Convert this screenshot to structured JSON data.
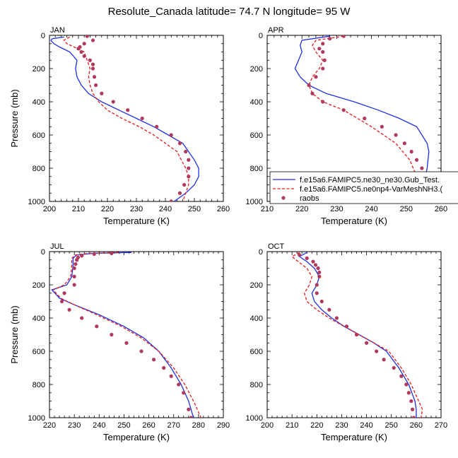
{
  "figure": {
    "title": "Resolute_Canada  latitude= 74.7 N longitude= 95 W"
  },
  "legend": {
    "series": [
      {
        "name": "f.e15a6.FAMIPC5.ne30_ne30.Gub_Test.",
        "style": "solid",
        "color": "#1f2fe6"
      },
      {
        "name": "f.e15a6.FAMIPC5.ne0np4-VarMeshNH3.(",
        "style": "dashed",
        "color": "#e31a1c"
      },
      {
        "name": "raobs",
        "style": "dots",
        "color": "#b03a5b"
      }
    ]
  },
  "chart_data": [
    {
      "type": "line",
      "panel": "JAN",
      "xlabel": "Temperature (K)",
      "ylabel": "Pressure (mb)",
      "xlim": [
        200,
        260
      ],
      "ylim": [
        1000,
        0
      ],
      "xticks": [
        200,
        210,
        220,
        230,
        240,
        250,
        260
      ],
      "yticks": [
        0,
        200,
        400,
        600,
        800,
        1000
      ],
      "series": [
        {
          "name": "f.e15a6.FAMIPC5.ne30_ne30.Gub_Test.",
          "x": [
            205,
            201,
            200.5,
            201.5,
            203.5,
            207,
            209.5,
            209,
            209.5,
            211,
            213.5,
            218,
            224,
            230,
            236,
            241,
            246,
            250,
            251.5,
            251.5,
            250,
            247,
            243
          ],
          "y": [
            10,
            20,
            30,
            50,
            70,
            100,
            150,
            200,
            250,
            300,
            350,
            400,
            450,
            500,
            550,
            600,
            650,
            750,
            800,
            850,
            900,
            950,
            1000
          ]
        },
        {
          "name": "f.e15a6.FAMIPC5.ne0np4-VarMeshNH3.(",
          "x": [
            207,
            205,
            206,
            208.5,
            212,
            213,
            214,
            213.5,
            214,
            215,
            217,
            220,
            225,
            231,
            236,
            240,
            244,
            247,
            248,
            248,
            247,
            246
          ],
          "y": [
            10,
            30,
            50,
            70,
            100,
            150,
            200,
            250,
            300,
            350,
            400,
            450,
            500,
            550,
            600,
            650,
            700,
            800,
            850,
            900,
            950,
            1000
          ]
        },
        {
          "name": "raobs",
          "x": [
            213,
            215,
            212,
            210.5,
            210,
            211,
            212,
            214,
            215,
            215,
            215.5,
            216,
            218,
            222,
            227,
            232,
            237,
            242,
            245,
            247,
            248,
            248,
            248,
            246.5,
            245,
            242
          ],
          "y": [
            5,
            30,
            50,
            70,
            80,
            100,
            125,
            150,
            175,
            200,
            250,
            300,
            350,
            400,
            450,
            500,
            550,
            600,
            650,
            700,
            750,
            800,
            850,
            900,
            950,
            1000
          ]
        }
      ]
    },
    {
      "type": "line",
      "panel": "APR",
      "xlabel": "Temperature (K)",
      "ylabel": "",
      "xlim": [
        210,
        260
      ],
      "ylim": [
        1000,
        0
      ],
      "xticks": [
        210,
        220,
        230,
        240,
        250,
        260
      ],
      "yticks": [
        0,
        200,
        400,
        600,
        800,
        1000
      ],
      "series": [
        {
          "name": "f.e15a6.FAMIPC5.ne30_ne30.Gub_Test.",
          "x": [
            228,
            220,
            219.5,
            220,
            219,
            218,
            219.5,
            222,
            227,
            235,
            242,
            248,
            253,
            256,
            256.5,
            256,
            255,
            254.5
          ],
          "y": [
            5,
            30,
            60,
            100,
            150,
            200,
            250,
            300,
            350,
            400,
            450,
            500,
            550,
            650,
            700,
            800,
            900,
            1000
          ]
        },
        {
          "name": "f.e15a6.FAMIPC5.ne0np4-VarMeshNH3.(",
          "x": [
            232,
            224,
            223,
            224,
            226,
            225,
            223,
            222,
            223,
            226,
            232,
            240,
            247,
            251,
            253,
            254,
            254
          ],
          "y": [
            5,
            30,
            60,
            100,
            150,
            200,
            250,
            300,
            350,
            400,
            450,
            550,
            650,
            750,
            850,
            950,
            1000
          ]
        },
        {
          "name": "raobs",
          "x": [
            232,
            228,
            226,
            225,
            226,
            226.5,
            226,
            224,
            222,
            223,
            226,
            232,
            238,
            243,
            247,
            249.5,
            251.5,
            253,
            254.5,
            254.5,
            252.5,
            251.5
          ],
          "y": [
            5,
            20,
            50,
            80,
            100,
            150,
            200,
            250,
            300,
            350,
            400,
            450,
            500,
            550,
            600,
            650,
            700,
            750,
            800,
            850,
            950,
            1000
          ]
        }
      ]
    },
    {
      "type": "line",
      "panel": "JUL",
      "xlabel": "Temperature (K)",
      "ylabel": "Pressure (mb)",
      "xlim": [
        220,
        290
      ],
      "ylim": [
        1000,
        0
      ],
      "xticks": [
        220,
        230,
        240,
        250,
        260,
        270,
        280,
        290
      ],
      "yticks": [
        0,
        200,
        400,
        600,
        800,
        1000
      ],
      "series": [
        {
          "name": "f.e15a6.FAMIPC5.ne30_ne30.Gub_Test.",
          "x": [
            253,
            238,
            231,
            229.5,
            229.5,
            229,
            227,
            221,
            224,
            230,
            240,
            250,
            258,
            264,
            269,
            273,
            276,
            278
          ],
          "y": [
            5,
            10,
            20,
            40,
            80,
            150,
            200,
            230,
            280,
            320,
            380,
            450,
            520,
            600,
            700,
            800,
            900,
            1000
          ]
        },
        {
          "name": "f.e15a6.FAMIPC5.ne0np4-VarMeshNH3.(",
          "x": [
            248,
            236,
            230.5,
            229,
            229,
            228.5,
            226,
            221.5,
            224.5,
            230,
            239,
            249,
            257,
            264,
            270,
            274.5,
            278,
            281
          ],
          "y": [
            5,
            10,
            20,
            40,
            80,
            150,
            200,
            230,
            280,
            320,
            380,
            450,
            520,
            600,
            700,
            800,
            900,
            1000
          ]
        },
        {
          "name": "raobs",
          "x": [
            245,
            238,
            233,
            231.5,
            231,
            230.5,
            230,
            230,
            230,
            226,
            225,
            228,
            233,
            239,
            245,
            251,
            257,
            262,
            266,
            269,
            272,
            274,
            276,
            277
          ],
          "y": [
            10,
            15,
            25,
            35,
            50,
            75,
            100,
            150,
            200,
            250,
            300,
            350,
            400,
            450,
            500,
            550,
            600,
            650,
            700,
            750,
            800,
            850,
            950,
            1000
          ]
        }
      ]
    },
    {
      "type": "line",
      "panel": "OCT",
      "xlabel": "Temperature (K)",
      "ylabel": "",
      "xlim": [
        200,
        270
      ],
      "ylim": [
        1000,
        0
      ],
      "xticks": [
        200,
        210,
        220,
        230,
        240,
        250,
        260,
        270
      ],
      "yticks": [
        0,
        200,
        400,
        600,
        800,
        1000
      ],
      "series": [
        {
          "name": "f.e15a6.FAMIPC5.ne30_ne30.Gub_Test.",
          "x": [
            216,
            213,
            216,
            219,
            221,
            220,
            218,
            219,
            222,
            226,
            231,
            237,
            243,
            248,
            253,
            257,
            259.5,
            260,
            260
          ],
          "y": [
            5,
            30,
            60,
            100,
            150,
            200,
            250,
            300,
            350,
            400,
            450,
            500,
            550,
            600,
            700,
            800,
            900,
            950,
            1000
          ]
        },
        {
          "name": "f.e15a6.FAMIPC5.ne0np4-VarMeshNH3.(",
          "x": [
            213,
            210,
            212.5,
            216,
            218,
            217,
            215,
            216,
            220,
            225,
            231,
            237,
            243,
            249,
            254,
            258,
            261,
            262.5,
            262
          ],
          "y": [
            5,
            30,
            60,
            100,
            150,
            200,
            250,
            300,
            350,
            400,
            450,
            500,
            550,
            600,
            700,
            800,
            900,
            950,
            1000
          ]
        },
        {
          "name": "raobs",
          "x": [
            213,
            216,
            218.5,
            219.5,
            220.5,
            221,
            221,
            220,
            220,
            222,
            225,
            228,
            232,
            236,
            240,
            244,
            247,
            251,
            254,
            256,
            257,
            258,
            258.5,
            259
          ],
          "y": [
            20,
            40,
            60,
            80,
            100,
            125,
            150,
            200,
            250,
            300,
            350,
            400,
            450,
            500,
            550,
            600,
            650,
            700,
            750,
            800,
            850,
            900,
            950,
            1000
          ]
        }
      ]
    }
  ]
}
